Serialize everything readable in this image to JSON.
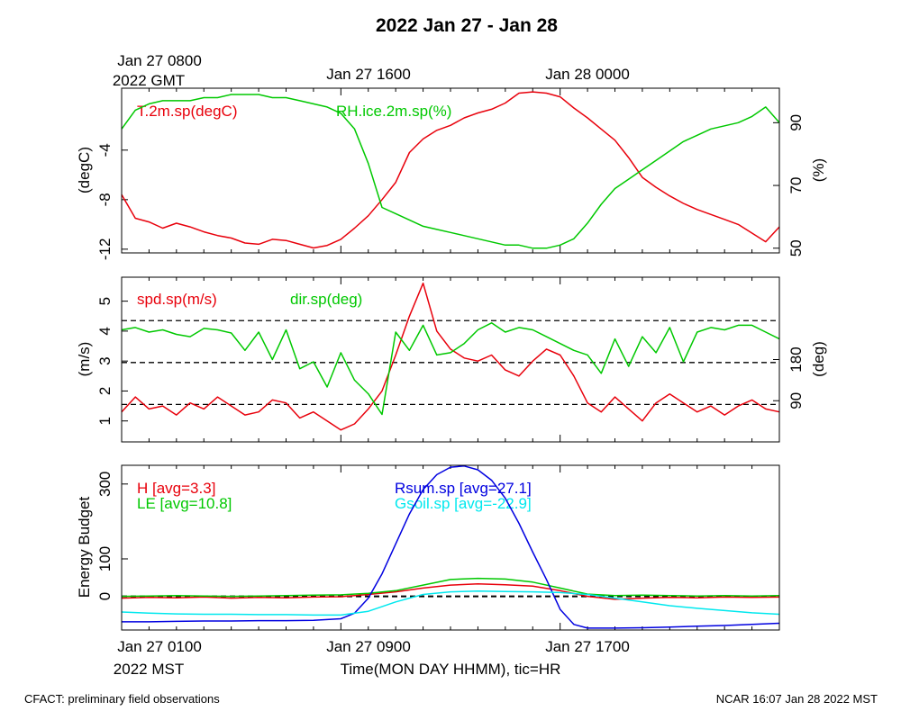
{
  "title": "2022 Jan 27 - Jan 28",
  "top_axis": {
    "labels": [
      "Jan 27 0800",
      "Jan 27 1600",
      "Jan 28 0000"
    ],
    "year_tz": "2022 GMT"
  },
  "bottom_axis": {
    "labels": [
      "Jan 27 0100",
      "Jan 27 0900",
      "Jan 27 1700"
    ],
    "year_tz": "2022 MST",
    "xlabel": "Time(MON DAY HHMM), tic=HR"
  },
  "footer": {
    "left": "CFACT: preliminary field observations",
    "right": "NCAR 16:07 Jan 28 2022 MST"
  },
  "colors": {
    "red": "#e8000b",
    "green": "#00c800",
    "blue": "#0000e0",
    "cyan": "#00e8ee"
  },
  "chart_data": [
    {
      "type": "line",
      "x_range_hours_mst": [
        0,
        24
      ],
      "left": {
        "ylabel": "(degC)",
        "ylim": [
          -12.3,
          1.0
        ],
        "ticks": [
          -12,
          -8,
          -4
        ]
      },
      "right": {
        "ylabel": "(%)",
        "ylim": [
          48.5,
          101
        ],
        "ticks": [
          50,
          70,
          90
        ]
      },
      "series": [
        {
          "name": "T.2m.sp(degC)",
          "color": "red",
          "axis": "left",
          "x": [
            0,
            0.5,
            1,
            1.5,
            2,
            2.5,
            3,
            3.5,
            4,
            4.5,
            5,
            5.5,
            6,
            6.5,
            7,
            7.5,
            8,
            8.5,
            9,
            9.5,
            10,
            10.5,
            11,
            11.5,
            12,
            12.5,
            13,
            13.5,
            14,
            14.5,
            15,
            15.5,
            16,
            16.5,
            17,
            17.5,
            18,
            18.5,
            19,
            19.5,
            20,
            20.5,
            21,
            21.5,
            22,
            22.5,
            23,
            23.5,
            24
          ],
          "values": [
            -7.6,
            -9.5,
            -9.8,
            -10.3,
            -9.9,
            -10.2,
            -10.6,
            -10.9,
            -11.1,
            -11.5,
            -11.6,
            -11.2,
            -11.3,
            -11.6,
            -11.9,
            -11.7,
            -11.2,
            -10.3,
            -9.3,
            -8.0,
            -6.6,
            -4.2,
            -3.1,
            -2.4,
            -2.0,
            -1.4,
            -1.0,
            -0.7,
            -0.2,
            0.6,
            0.7,
            0.6,
            0.3,
            -0.6,
            -1.4,
            -2.3,
            -3.2,
            -4.6,
            -6.2,
            -7.0,
            -7.7,
            -8.3,
            -8.8,
            -9.2,
            -9.6,
            -10.0,
            -10.7,
            -11.4,
            -10.2
          ]
        },
        {
          "name": "RH.ice.2m.sp(%)",
          "color": "green",
          "axis": "right",
          "x": [
            0,
            0.5,
            1,
            1.5,
            2,
            2.5,
            3,
            3.5,
            4,
            4.5,
            5,
            5.5,
            6,
            6.5,
            7,
            7.5,
            8,
            8.5,
            9,
            9.5,
            10,
            10.5,
            11,
            11.5,
            12,
            12.5,
            13,
            13.5,
            14,
            14.5,
            15,
            15.5,
            16,
            16.5,
            17,
            17.5,
            18,
            18.5,
            19,
            19.5,
            20,
            20.5,
            21,
            21.5,
            22,
            22.5,
            23,
            23.5,
            24
          ],
          "values": [
            88,
            94,
            96,
            97,
            97,
            97,
            98,
            98,
            99,
            99,
            99,
            98,
            98,
            97,
            96,
            95,
            93,
            88,
            77,
            63,
            61,
            59,
            57,
            56,
            55,
            54,
            53,
            52,
            51,
            51,
            50,
            50,
            51,
            53,
            58,
            64,
            69,
            72,
            75,
            78,
            81,
            84,
            86,
            88,
            89,
            90,
            92,
            95,
            90
          ]
        }
      ],
      "legend": [
        "T.2m.sp(degC)",
        "RH.ice.2m.sp(%)"
      ]
    },
    {
      "type": "line",
      "x_range_hours_mst": [
        0,
        24
      ],
      "left": {
        "ylabel": "(m/s)",
        "ylim": [
          0.3,
          5.8
        ],
        "ticks": [
          1,
          2,
          3,
          4,
          5
        ]
      },
      "right": {
        "ylabel": "(deg)",
        "ylim": [
          0,
          360
        ],
        "ticks": [
          90,
          180
        ]
      },
      "reference_lines_left": [
        1.55,
        2.95,
        4.35
      ],
      "series": [
        {
          "name": "spd.sp(m/s)",
          "color": "red",
          "axis": "left",
          "x": [
            0,
            0.5,
            1,
            1.5,
            2,
            2.5,
            3,
            3.5,
            4,
            4.5,
            5,
            5.5,
            6,
            6.5,
            7,
            7.5,
            8,
            8.5,
            9,
            9.5,
            10,
            10.5,
            11,
            11.5,
            12,
            12.5,
            13,
            13.5,
            14,
            14.5,
            15,
            15.5,
            16,
            16.5,
            17,
            17.5,
            18,
            18.5,
            19,
            19.5,
            20,
            20.5,
            21,
            21.5,
            22,
            22.5,
            23,
            23.5,
            24
          ],
          "values": [
            1.3,
            1.8,
            1.4,
            1.5,
            1.2,
            1.6,
            1.4,
            1.8,
            1.5,
            1.2,
            1.3,
            1.7,
            1.6,
            1.1,
            1.3,
            1.0,
            0.7,
            0.9,
            1.4,
            2.0,
            3.2,
            4.5,
            5.6,
            4.0,
            3.4,
            3.1,
            3.0,
            3.2,
            2.7,
            2.5,
            3.0,
            3.4,
            3.2,
            2.5,
            1.6,
            1.3,
            1.8,
            1.4,
            1.0,
            1.6,
            1.9,
            1.6,
            1.3,
            1.5,
            1.2,
            1.5,
            1.7,
            1.4,
            1.3
          ]
        },
        {
          "name": "dir.sp(deg)",
          "color": "green",
          "axis": "right",
          "x": [
            0,
            0.5,
            1,
            1.5,
            2,
            2.5,
            3,
            3.5,
            4,
            4.5,
            5,
            5.5,
            6,
            6.5,
            7,
            7.5,
            8,
            8.5,
            9,
            9.5,
            10,
            10.5,
            11,
            11.5,
            12,
            12.5,
            13,
            13.5,
            14,
            14.5,
            15,
            15.5,
            16,
            16.5,
            17,
            17.5,
            18,
            18.5,
            19,
            19.5,
            20,
            20.5,
            21,
            21.5,
            22,
            22.5,
            23,
            23.5,
            24
          ],
          "values": [
            245,
            250,
            240,
            245,
            235,
            230,
            248,
            245,
            238,
            200,
            240,
            180,
            245,
            160,
            175,
            120,
            195,
            135,
            105,
            60,
            240,
            200,
            255,
            190,
            195,
            215,
            245,
            260,
            240,
            250,
            245,
            230,
            215,
            200,
            190,
            150,
            225,
            165,
            230,
            195,
            250,
            175,
            240,
            250,
            245,
            255,
            255,
            240,
            225
          ]
        }
      ],
      "legend": [
        "spd.sp(m/s)",
        "dir.sp(deg)"
      ]
    },
    {
      "type": "line",
      "x_range_hours_mst": [
        0,
        24
      ],
      "left": {
        "ylabel": "Energy Budget",
        "ylim": [
          -90,
          350
        ],
        "ticks": [
          0,
          100,
          300
        ]
      },
      "reference_lines_left": [
        0
      ],
      "series": [
        {
          "name": "H [avg=3.3]",
          "color": "red",
          "x": [
            0,
            1,
            2,
            3,
            4,
            5,
            6,
            7,
            8,
            9,
            10,
            11,
            12,
            13,
            14,
            15,
            16,
            17,
            18,
            19,
            20,
            21,
            22,
            23,
            24
          ],
          "values": [
            -5,
            -3,
            -4,
            -2,
            -5,
            -3,
            -4,
            -2,
            -1,
            5,
            12,
            22,
            30,
            33,
            31,
            27,
            15,
            0,
            -8,
            -5,
            -3,
            -4,
            -2,
            -3,
            -2
          ]
        },
        {
          "name": "LE [avg=10.8]",
          "color": "green",
          "x": [
            0,
            1,
            2,
            3,
            4,
            5,
            6,
            7,
            8,
            9,
            10,
            11,
            12,
            13,
            14,
            15,
            16,
            17,
            18,
            19,
            20,
            21,
            22,
            23,
            24
          ],
          "values": [
            0,
            1,
            2,
            1,
            0,
            1,
            2,
            3,
            4,
            8,
            15,
            30,
            45,
            48,
            46,
            38,
            22,
            6,
            2,
            3,
            2,
            1,
            2,
            1,
            2
          ]
        },
        {
          "name": "Rsum.sp [avg=27.1]",
          "color": "blue",
          "x": [
            0,
            1,
            2,
            3,
            4,
            5,
            6,
            7,
            8,
            8.5,
            9,
            9.5,
            10,
            10.5,
            11,
            11.5,
            12,
            12.5,
            13,
            13.5,
            14,
            14.5,
            15,
            15.5,
            16,
            16.5,
            17,
            18,
            19,
            20,
            21,
            22,
            23,
            24
          ],
          "values": [
            -68,
            -68,
            -67,
            -66,
            -66,
            -65,
            -65,
            -64,
            -60,
            -45,
            -5,
            60,
            140,
            220,
            285,
            325,
            345,
            348,
            338,
            310,
            262,
            195,
            118,
            45,
            -35,
            -75,
            -85,
            -85,
            -84,
            -82,
            -80,
            -78,
            -75,
            -72
          ]
        },
        {
          "name": "Gsoil.sp [avg=-22.9]",
          "color": "cyan",
          "x": [
            0,
            1,
            2,
            3,
            4,
            5,
            6,
            7,
            8,
            9,
            10,
            11,
            12,
            13,
            14,
            15,
            16,
            17,
            18,
            19,
            20,
            21,
            22,
            23,
            24
          ],
          "values": [
            -42,
            -45,
            -47,
            -48,
            -48,
            -49,
            -49,
            -50,
            -50,
            -40,
            -15,
            5,
            12,
            14,
            13,
            12,
            10,
            5,
            -5,
            -15,
            -25,
            -32,
            -38,
            -44,
            -48
          ]
        }
      ],
      "legend": [
        "H [avg=3.3]",
        "LE [avg=10.8]",
        "Rsum.sp [avg=27.1]",
        "Gsoil.sp [avg=-22.9]"
      ]
    }
  ]
}
